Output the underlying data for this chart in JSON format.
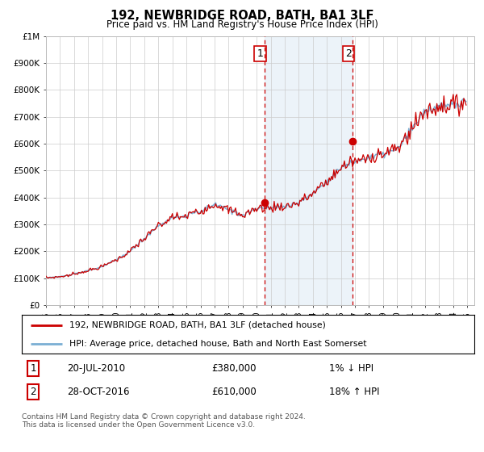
{
  "title": "192, NEWBRIDGE ROAD, BATH, BA1 3LF",
  "subtitle": "Price paid vs. HM Land Registry's House Price Index (HPI)",
  "ylabel_ticks": [
    "£0",
    "£100K",
    "£200K",
    "£300K",
    "£400K",
    "£500K",
    "£600K",
    "£700K",
    "£800K",
    "£900K",
    "£1M"
  ],
  "ytick_values": [
    0,
    100000,
    200000,
    300000,
    400000,
    500000,
    600000,
    700000,
    800000,
    900000,
    1000000
  ],
  "ylim": [
    0,
    1000000
  ],
  "xlim_start": 1995.0,
  "xlim_end": 2025.5,
  "xtick_years": [
    1995,
    1996,
    1997,
    1998,
    1999,
    2000,
    2001,
    2002,
    2003,
    2004,
    2005,
    2006,
    2007,
    2008,
    2009,
    2010,
    2011,
    2012,
    2013,
    2014,
    2015,
    2016,
    2017,
    2018,
    2019,
    2020,
    2021,
    2022,
    2023,
    2024,
    2025
  ],
  "hpi_color": "#7bafd4",
  "price_color": "#cc0000",
  "sale1_x": 2010.55,
  "sale1_y": 380000,
  "sale1_label": "1",
  "sale2_x": 2016.83,
  "sale2_y": 610000,
  "sale2_label": "2",
  "vline_color": "#cc0000",
  "vline_style": "--",
  "shaded_region_color": "#ddeaf5",
  "shaded_alpha": 0.55,
  "legend1_text": "192, NEWBRIDGE ROAD, BATH, BA1 3LF (detached house)",
  "legend2_text": "HPI: Average price, detached house, Bath and North East Somerset",
  "table_row1_num": "1",
  "table_row1_date": "20-JUL-2010",
  "table_row1_price": "£380,000",
  "table_row1_hpi": "1% ↓ HPI",
  "table_row2_num": "2",
  "table_row2_date": "28-OCT-2016",
  "table_row2_price": "£610,000",
  "table_row2_hpi": "18% ↑ HPI",
  "footnote": "Contains HM Land Registry data © Crown copyright and database right 2024.\nThis data is licensed under the Open Government Licence v3.0.",
  "background_color": "#ffffff",
  "plot_bg_color": "#ffffff",
  "grid_color": "#cccccc"
}
